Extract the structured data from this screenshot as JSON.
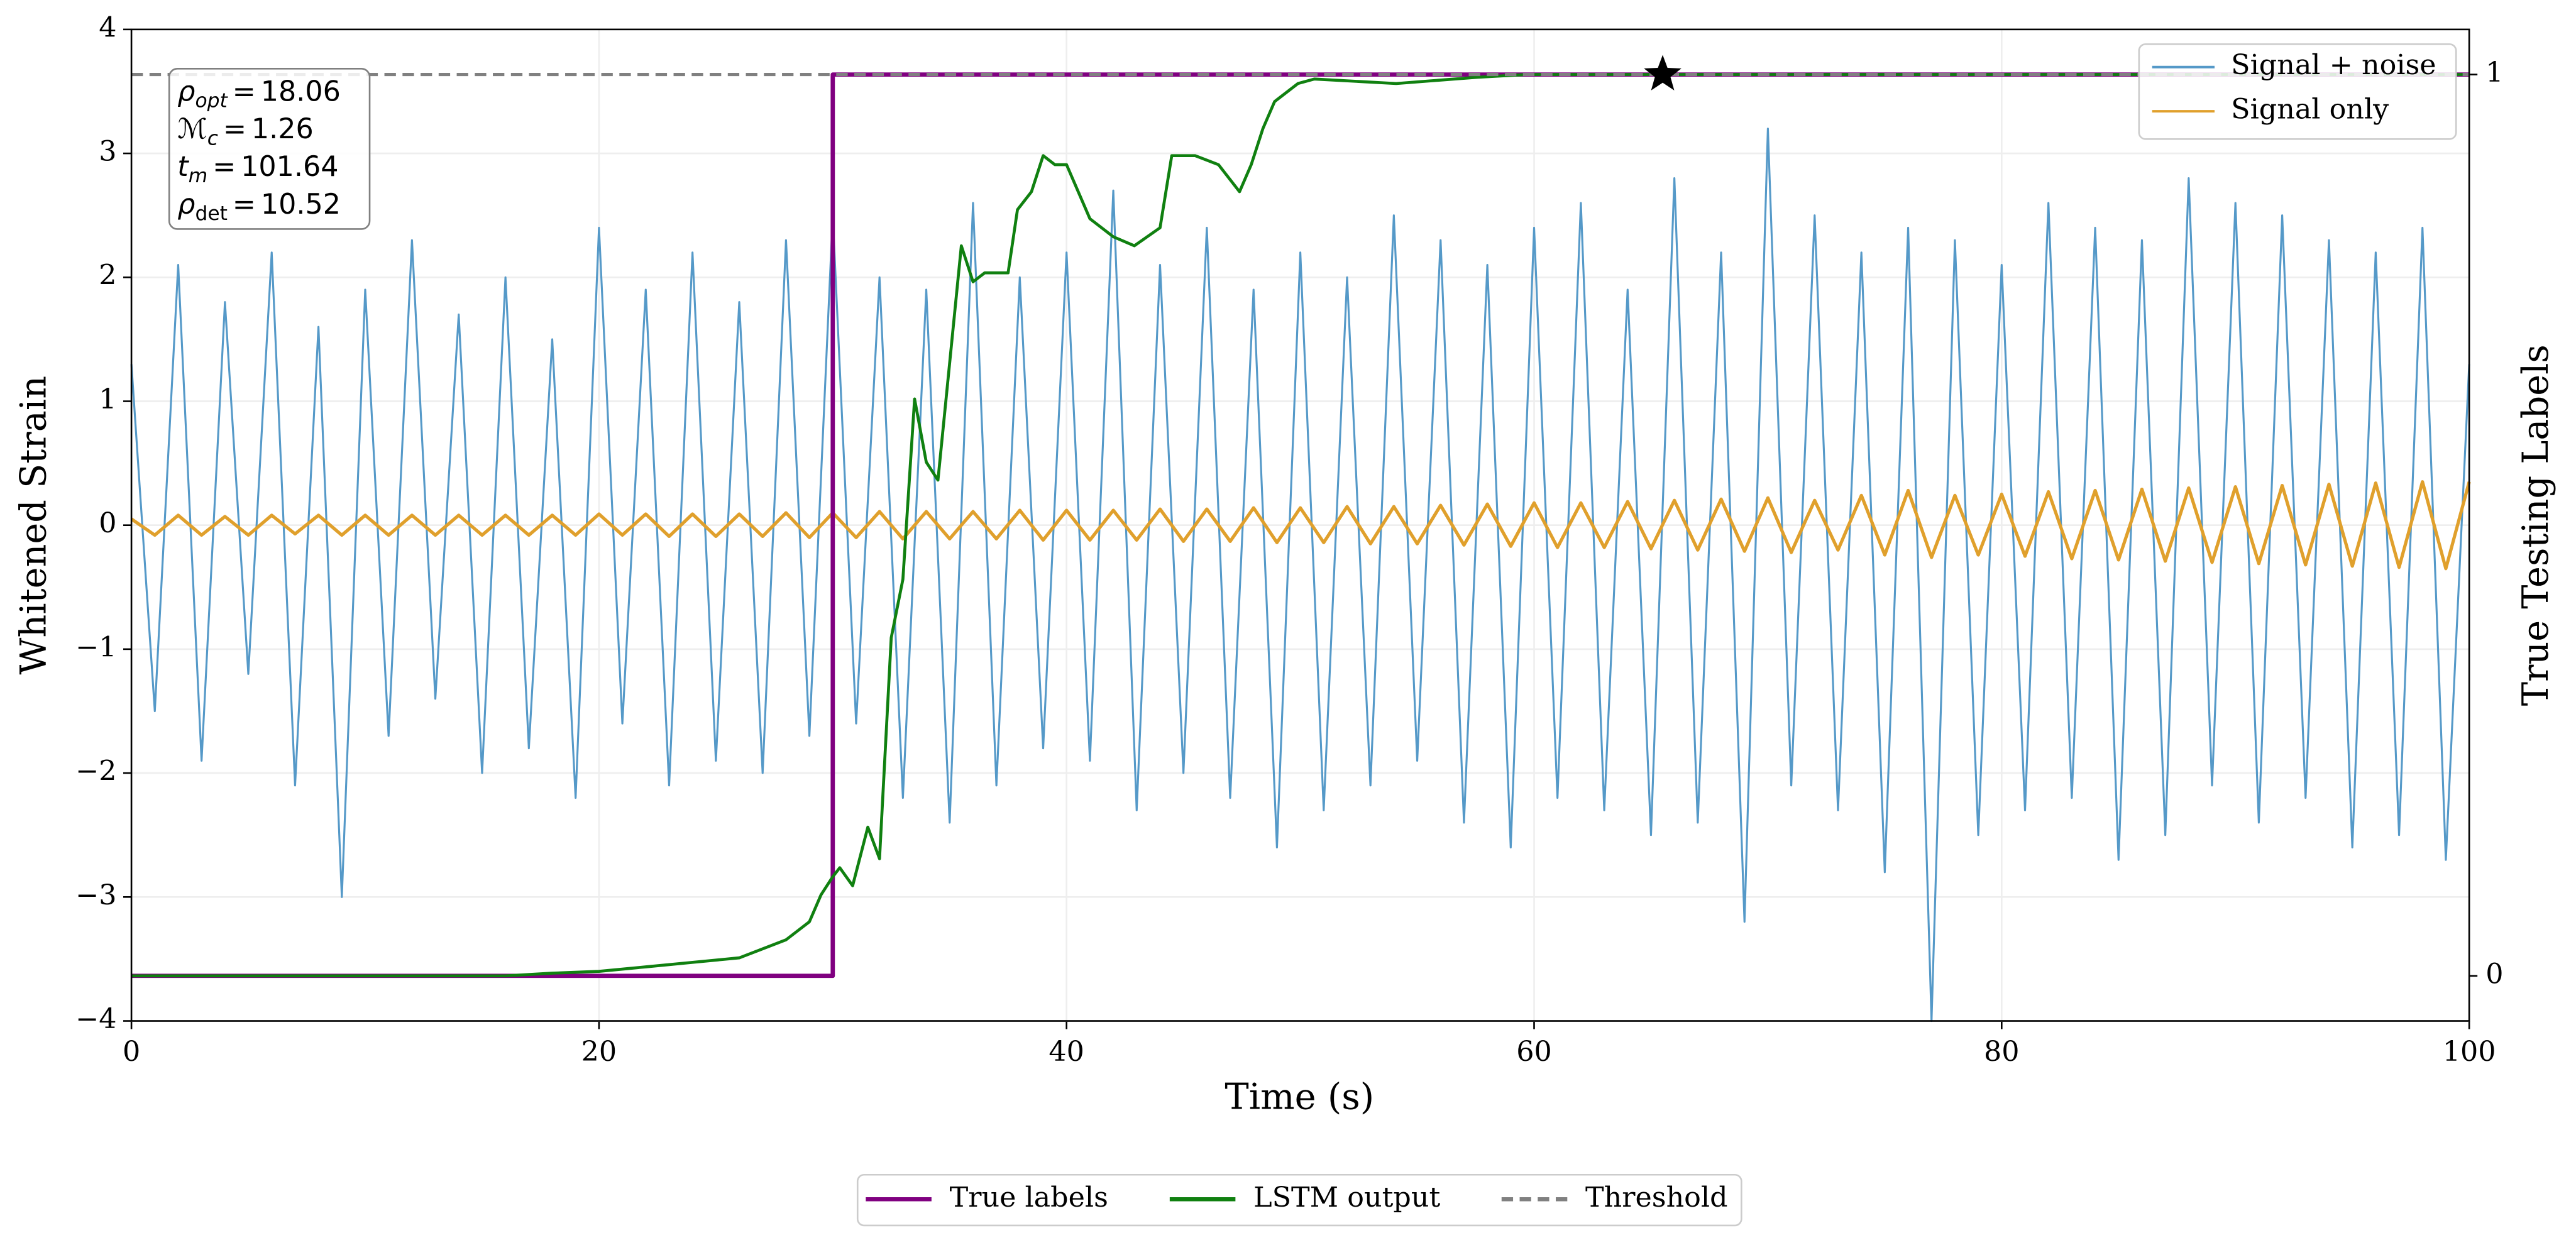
{
  "chart_data": {
    "type": "line",
    "xlabel": "Time (s)",
    "ylabel": "Whitened Strain",
    "y2label": "True Testing Labels",
    "xlim": [
      0,
      100
    ],
    "xticks": [
      0,
      20,
      40,
      60,
      80,
      100
    ],
    "ylim": [
      -4,
      4
    ],
    "yticks": [
      {
        "value": -4,
        "label": "−4"
      },
      {
        "value": -3,
        "label": "−3"
      },
      {
        "value": -2,
        "label": "−2"
      },
      {
        "value": -1,
        "label": "−1"
      },
      0,
      1,
      2,
      3,
      4
    ],
    "y2lim": [
      -0.05,
      1.05
    ],
    "y2ticks": [
      0,
      1
    ],
    "grid": true,
    "series": [
      {
        "name": "Signal + noise",
        "color": "#5599c8",
        "legend": "upper right",
        "x": [
          0,
          1,
          2,
          3,
          4,
          5,
          6,
          7,
          8,
          9,
          10,
          11,
          12,
          13,
          14,
          15,
          16,
          17,
          18,
          19,
          20,
          21,
          22,
          23,
          24,
          25,
          26,
          27,
          28,
          29,
          30,
          31,
          32,
          33,
          34,
          35,
          36,
          37,
          38,
          39,
          40,
          41,
          42,
          43,
          44,
          45,
          46,
          47,
          48,
          49,
          50,
          51,
          52,
          53,
          54,
          55,
          56,
          57,
          58,
          59,
          60,
          61,
          62,
          63,
          64,
          65,
          66,
          67,
          68,
          69,
          70,
          71,
          72,
          73,
          74,
          75,
          76,
          77,
          78,
          79,
          80,
          81,
          82,
          83,
          84,
          85,
          86,
          87,
          88,
          89,
          90,
          91,
          92,
          93,
          94,
          95,
          96,
          97,
          98,
          99,
          100
        ],
        "values": [
          1.3,
          -1.5,
          2.1,
          -1.9,
          1.8,
          -1.2,
          2.2,
          -2.1,
          1.6,
          -3.0,
          1.9,
          -1.7,
          2.3,
          -1.4,
          1.7,
          -2.0,
          2.0,
          -1.8,
          1.5,
          -2.2,
          2.4,
          -1.6,
          1.9,
          -2.1,
          2.2,
          -1.9,
          1.8,
          -2.0,
          2.3,
          -1.7,
          2.5,
          -1.6,
          2.0,
          -2.2,
          1.9,
          -2.4,
          2.6,
          -2.1,
          2.0,
          -1.8,
          2.2,
          -1.9,
          2.7,
          -2.3,
          2.1,
          -2.0,
          2.4,
          -2.2,
          1.9,
          -2.6,
          2.2,
          -2.3,
          2.0,
          -2.1,
          2.5,
          -1.9,
          2.3,
          -2.4,
          2.1,
          -2.6,
          2.4,
          -2.2,
          2.6,
          -2.3,
          1.9,
          -2.5,
          2.8,
          -2.4,
          2.2,
          -3.2,
          3.2,
          -2.1,
          2.5,
          -2.3,
          2.2,
          -2.8,
          2.4,
          -4.0,
          2.3,
          -2.5,
          2.1,
          -2.3,
          2.6,
          -2.2,
          2.4,
          -2.7,
          2.3,
          -2.5,
          2.8,
          -2.1,
          2.6,
          -2.4,
          2.5,
          -2.2,
          2.3,
          -2.6,
          2.2,
          -2.5,
          2.4,
          -2.7,
          1.3
        ]
      },
      {
        "name": "Signal only",
        "color": "#e0a02c",
        "legend": "upper right",
        "x": [
          0,
          1,
          2,
          3,
          4,
          5,
          6,
          7,
          8,
          9,
          10,
          11,
          12,
          13,
          14,
          15,
          16,
          17,
          18,
          19,
          20,
          21,
          22,
          23,
          24,
          25,
          26,
          27,
          28,
          29,
          30,
          31,
          32,
          33,
          34,
          35,
          36,
          37,
          38,
          39,
          40,
          41,
          42,
          43,
          44,
          45,
          46,
          47,
          48,
          49,
          50,
          51,
          52,
          53,
          54,
          55,
          56,
          57,
          58,
          59,
          60,
          61,
          62,
          63,
          64,
          65,
          66,
          67,
          68,
          69,
          70,
          71,
          72,
          73,
          74,
          75,
          76,
          77,
          78,
          79,
          80,
          81,
          82,
          83,
          84,
          85,
          86,
          87,
          88,
          89,
          90,
          91,
          92,
          93,
          94,
          95,
          96,
          97,
          98,
          99,
          100
        ],
        "values": [
          0.05,
          -0.08,
          0.08,
          -0.08,
          0.07,
          -0.08,
          0.08,
          -0.07,
          0.08,
          -0.08,
          0.08,
          -0.08,
          0.08,
          -0.08,
          0.08,
          -0.08,
          0.08,
          -0.08,
          0.08,
          -0.08,
          0.09,
          -0.08,
          0.09,
          -0.09,
          0.09,
          -0.09,
          0.09,
          -0.09,
          0.1,
          -0.1,
          0.1,
          -0.1,
          0.11,
          -0.11,
          0.11,
          -0.11,
          0.11,
          -0.11,
          0.12,
          -0.12,
          0.12,
          -0.12,
          0.12,
          -0.12,
          0.13,
          -0.13,
          0.13,
          -0.13,
          0.14,
          -0.14,
          0.14,
          -0.14,
          0.15,
          -0.15,
          0.15,
          -0.15,
          0.16,
          -0.16,
          0.17,
          -0.17,
          0.18,
          -0.18,
          0.18,
          -0.18,
          0.19,
          -0.19,
          0.2,
          -0.2,
          0.21,
          -0.21,
          0.22,
          -0.22,
          0.2,
          -0.2,
          0.24,
          -0.24,
          0.28,
          -0.26,
          0.24,
          -0.24,
          0.25,
          -0.25,
          0.27,
          -0.27,
          0.28,
          -0.28,
          0.29,
          -0.29,
          0.3,
          -0.3,
          0.31,
          -0.31,
          0.32,
          -0.32,
          0.33,
          -0.33,
          0.34,
          -0.34,
          0.35,
          -0.35,
          0.35
        ]
      },
      {
        "name": "True labels",
        "color": "#800080",
        "legend": "lower center",
        "axis": "y2",
        "x": [
          0,
          30,
          30,
          100
        ],
        "values": [
          0,
          0,
          1,
          1
        ]
      },
      {
        "name": "LSTM output",
        "color": "#108010",
        "legend": "lower center",
        "axis": "y2",
        "x": [
          0,
          10,
          16,
          18,
          20,
          22,
          24,
          26,
          27,
          28,
          29,
          29.5,
          30,
          30.3,
          30.85,
          31.5,
          32,
          32.5,
          33,
          33.5,
          34,
          34.5,
          35,
          35.5,
          36,
          36.5,
          37.5,
          37.9,
          38.5,
          39,
          39.5,
          40,
          40.5,
          41,
          42,
          42.9,
          44,
          44.5,
          45.5,
          46.5,
          47.4,
          47.9,
          48.4,
          48.9,
          49.4,
          49.9,
          50.6,
          54.1,
          57.6,
          59.7,
          64.7,
          100
        ],
        "values": [
          0,
          0,
          0,
          0.003,
          0.005,
          0.01,
          0.015,
          0.02,
          0.03,
          0.04,
          0.06,
          0.09,
          0.11,
          0.12,
          0.1,
          0.165,
          0.13,
          0.375,
          0.44,
          0.64,
          0.57,
          0.55,
          0.68,
          0.81,
          0.77,
          0.78,
          0.78,
          0.85,
          0.87,
          0.91,
          0.9,
          0.9,
          0.87,
          0.84,
          0.82,
          0.81,
          0.83,
          0.91,
          0.91,
          0.9,
          0.87,
          0.9,
          0.94,
          0.97,
          0.98,
          0.99,
          0.995,
          0.99,
          0.997,
          1,
          1,
          1
        ]
      }
    ],
    "threshold": {
      "name": "Threshold",
      "value": 1,
      "axis": "y2",
      "color": "#808080",
      "legend": "lower center"
    },
    "marker": {
      "x": 65.5,
      "y": 1,
      "axis": "y2",
      "color": "#000000"
    },
    "annotations": [
      {
        "symbol": "ρ",
        "subscript": "opt",
        "relation": "=",
        "value": 18.06
      },
      {
        "symbol": "ℳ",
        "subscript": "c",
        "relation": "=",
        "value": 1.26
      },
      {
        "symbol": "t",
        "subscript": "m",
        "relation": "=",
        "value": 101.64
      },
      {
        "symbol": "ρ",
        "subscript": "det",
        "relation": "=",
        "value": 10.52
      }
    ]
  }
}
